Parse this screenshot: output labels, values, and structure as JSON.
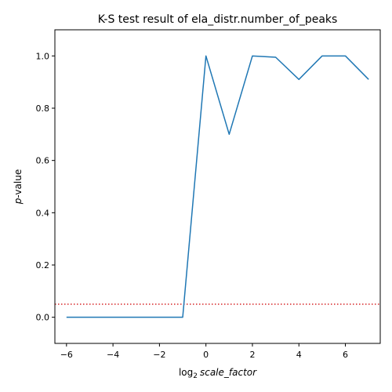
{
  "chart_data": {
    "type": "line",
    "title": "K-S test result of ela_distr.number_of_peaks",
    "xlabel_prefix": "log",
    "xlabel_sub": "2",
    "xlabel_italic": "scale_factor",
    "ylabel_italic": "p",
    "ylabel_rest": "-value",
    "xlim": [
      -6.5,
      7.5
    ],
    "ylim": [
      -0.1,
      1.1
    ],
    "x_ticks": [
      -6,
      -4,
      -2,
      0,
      2,
      4,
      6
    ],
    "x_tick_labels": [
      "−6",
      "−4",
      "−2",
      "0",
      "2",
      "4",
      "6"
    ],
    "y_ticks": [
      0.0,
      0.2,
      0.4,
      0.6,
      0.8,
      1.0
    ],
    "y_tick_labels": [
      "0.0",
      "0.2",
      "0.4",
      "0.6",
      "0.8",
      "1.0"
    ],
    "series": [
      {
        "x": [
          -6,
          -5,
          -4,
          -3,
          -2,
          -1,
          0,
          1,
          2,
          3,
          4,
          5,
          6,
          7
        ],
        "values": [
          0,
          0,
          0,
          0,
          0,
          0,
          1.0,
          0.7,
          1.0,
          0.995,
          0.91,
          1.0,
          1.0,
          0.91
        ],
        "color": "#1f77b4"
      }
    ],
    "reference_line": {
      "y": 0.05,
      "color": "#d62728",
      "style": "dotted"
    },
    "grid": false
  }
}
